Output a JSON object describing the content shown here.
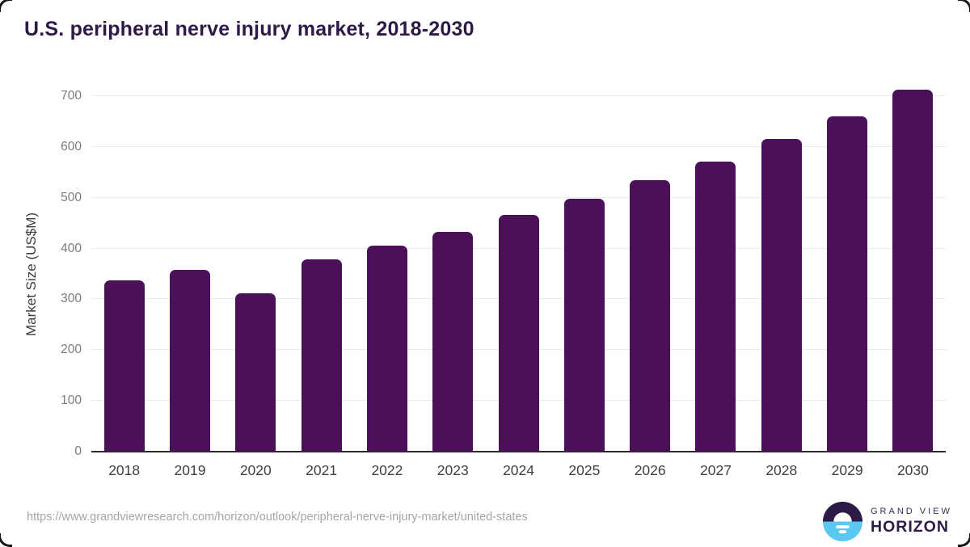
{
  "title": "U.S. peripheral nerve injury market, 2018-2030",
  "source_url": "https://www.grandviewresearch.com/horizon/outlook/peripheral-nerve-injury-market/united-states",
  "logo": {
    "line1": "GRAND VIEW",
    "line2": "HORIZON"
  },
  "colors": {
    "bar": "#4a1158",
    "title_text": "#2e1a47",
    "axis_line": "#2b2b2b",
    "gridline": "#ececec",
    "y_tick_text": "#7c7c7c",
    "x_tick_text": "#3f3f3f",
    "url_text": "#a5a5a5",
    "logo_dark": "#2e1a47",
    "logo_blue": "#5ac8f0"
  },
  "chart_data": {
    "type": "bar",
    "title": "U.S. peripheral nerve injury market, 2018-2030",
    "categories": [
      "2018",
      "2019",
      "2020",
      "2021",
      "2022",
      "2023",
      "2024",
      "2025",
      "2026",
      "2027",
      "2028",
      "2029",
      "2030"
    ],
    "values": [
      337,
      358,
      312,
      378,
      406,
      433,
      466,
      498,
      534,
      571,
      615,
      661,
      712
    ],
    "xlabel": "",
    "ylabel": "Market Size (US$M)",
    "ylim": [
      0,
      700
    ],
    "yticks": [
      0,
      100,
      200,
      300,
      400,
      500,
      600,
      700
    ],
    "grid": true,
    "legend": "none",
    "bar_color": "#4a1158"
  }
}
